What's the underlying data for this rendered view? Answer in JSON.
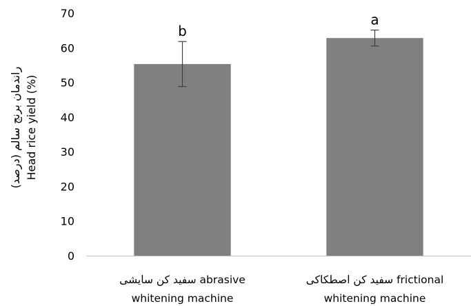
{
  "chart_data": {
    "type": "bar",
    "categories": [
      {
        "line1": "سفید کن سایشی  abrasive",
        "line2": "whitening machine"
      },
      {
        "line1": "سفید کن اصطکاکی  frictional",
        "line2": "whitening machine"
      }
    ],
    "values": [
      55.3,
      62.8
    ],
    "error": [
      6.5,
      2.3
    ],
    "significance": [
      "b",
      "a"
    ],
    "ylabel_line1": "راندمان برنج سالم (درصد)",
    "ylabel_line2": "Head rice yield (%)",
    "ylim": [
      0,
      70
    ],
    "yticks": [
      0,
      10,
      20,
      30,
      40,
      50,
      60,
      70
    ],
    "bar_color": "#808080",
    "grid": false
  }
}
